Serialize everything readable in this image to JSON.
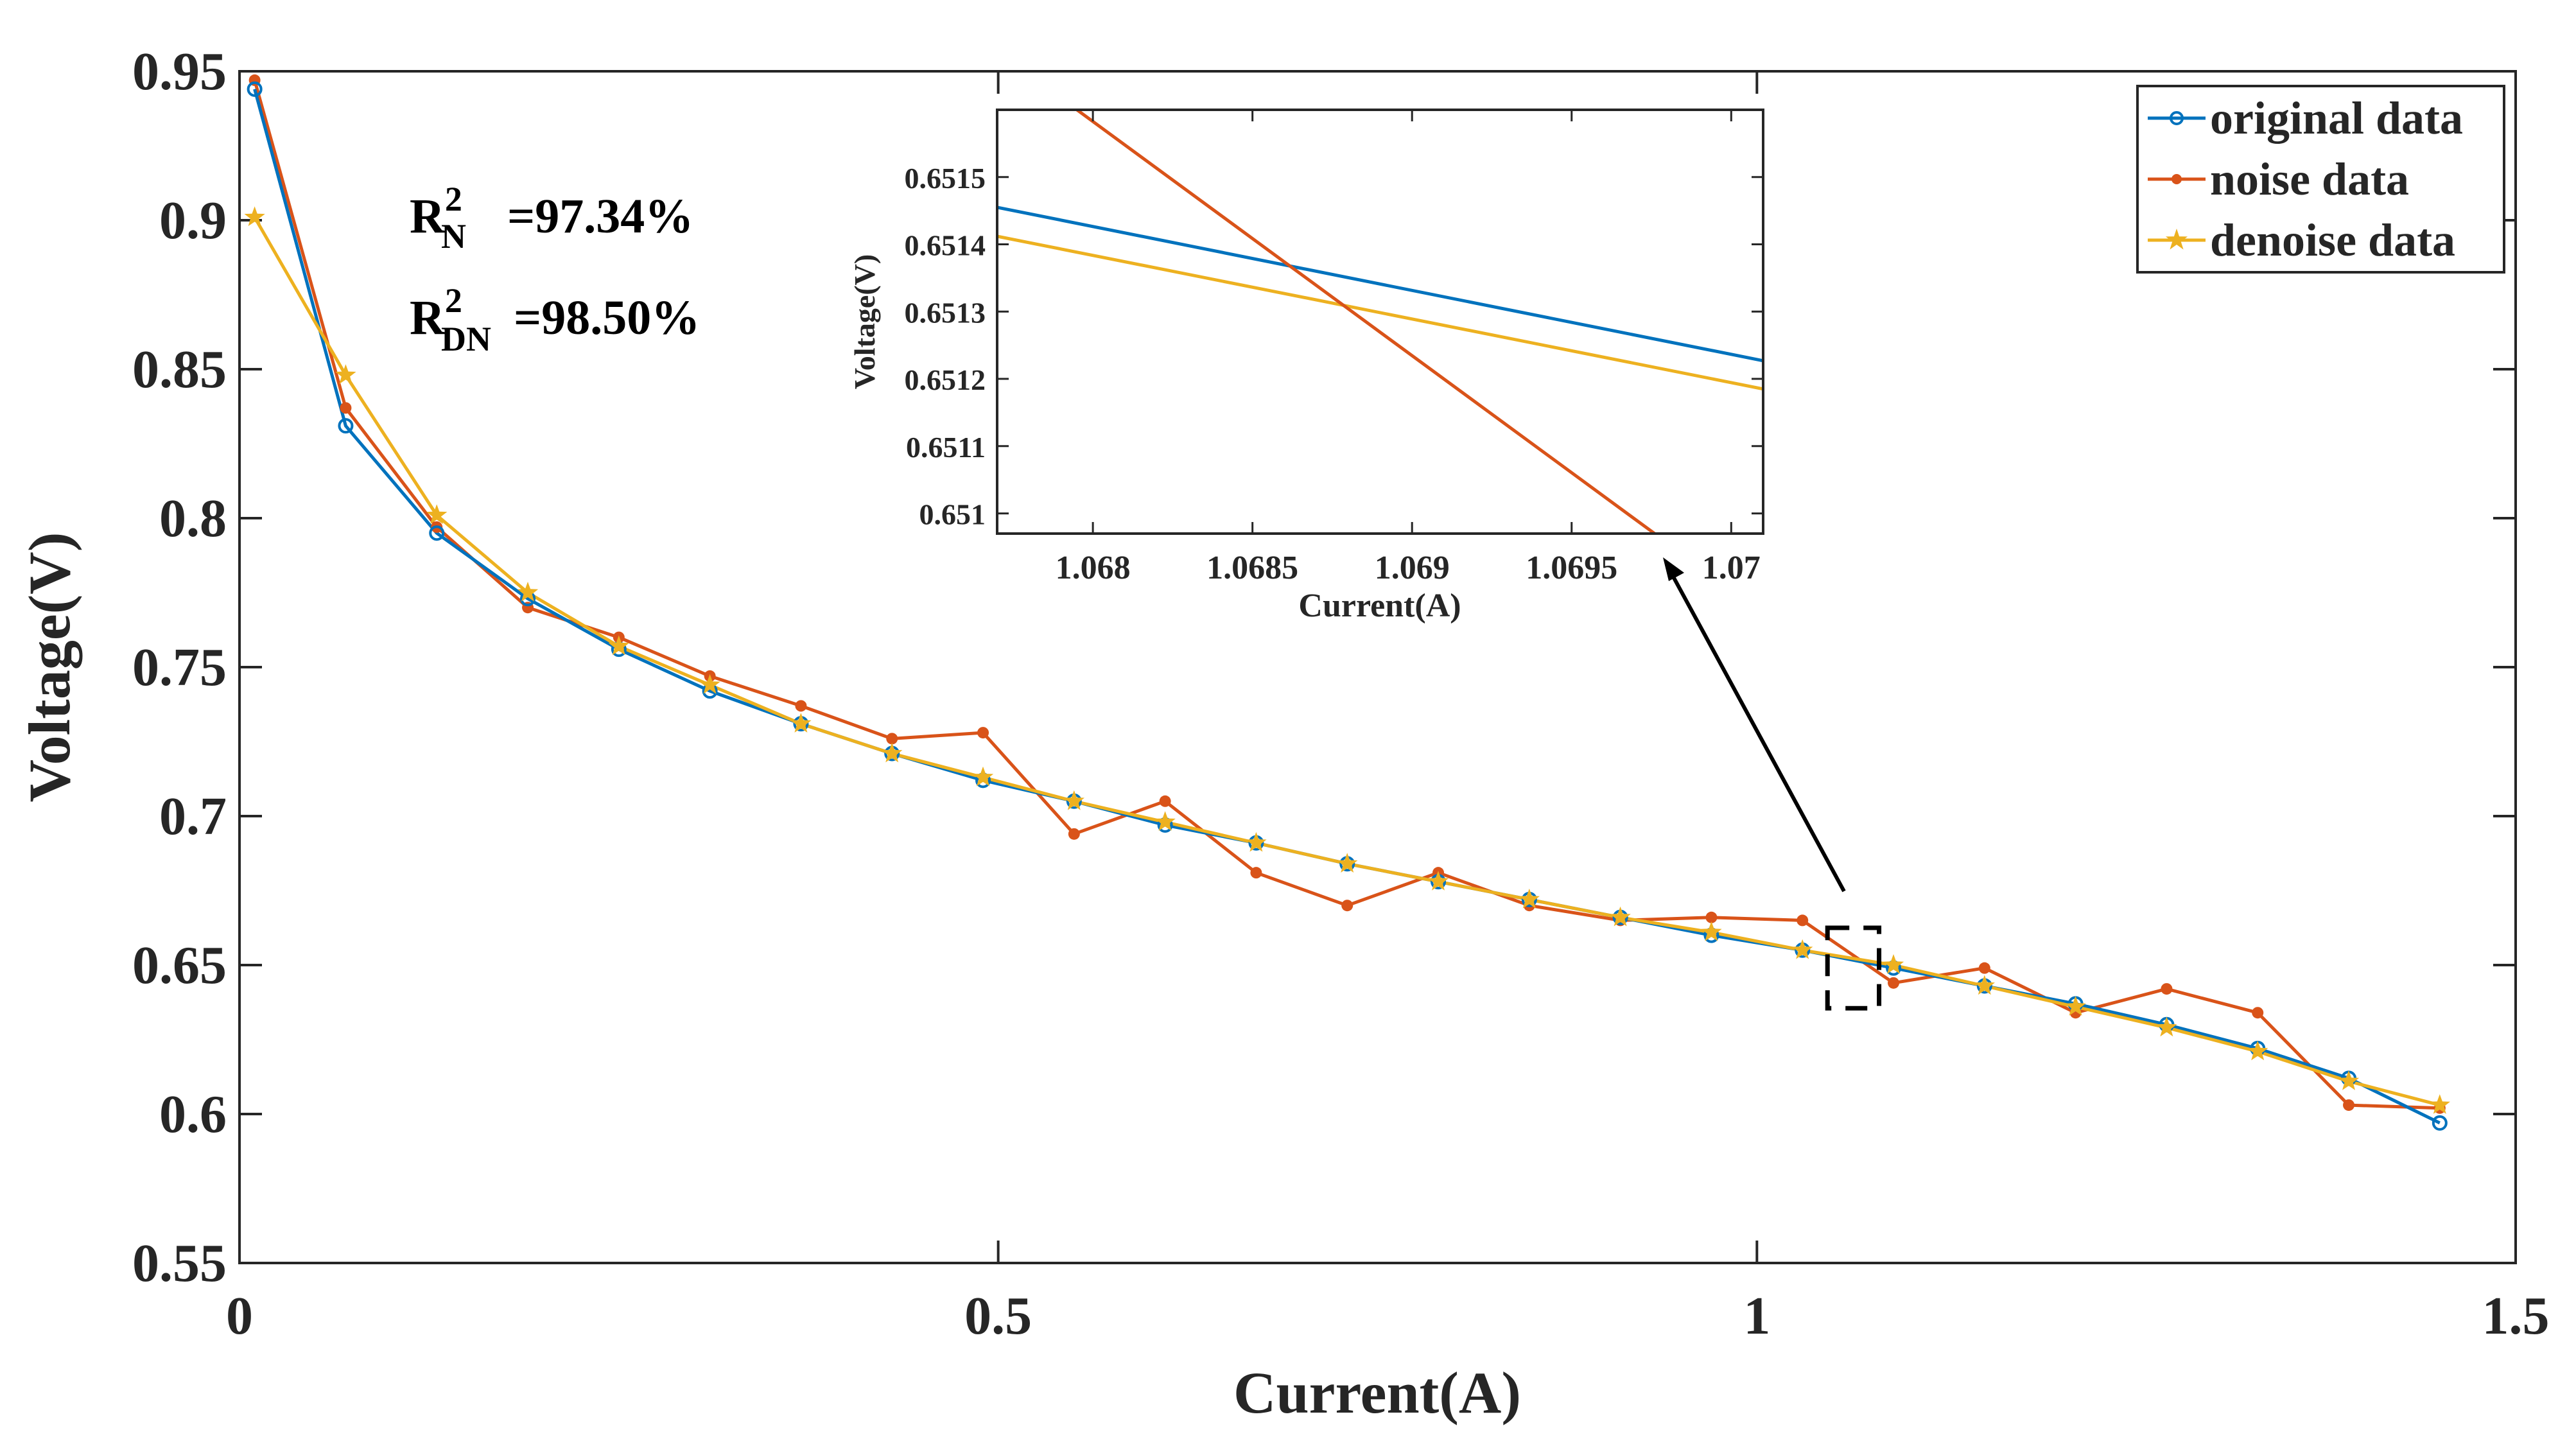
{
  "chart_data": [
    {
      "type": "line",
      "title": "",
      "xlabel": "Current(A)",
      "ylabel": "Voltage(V)",
      "xlim": [
        0,
        1.5
      ],
      "ylim": [
        0.55,
        0.95
      ],
      "xticks": [
        0,
        0.5,
        1,
        1.5
      ],
      "xtick_labels": [
        "0",
        "0.5",
        "1",
        "1.5"
      ],
      "yticks": [
        0.55,
        0.6,
        0.65,
        0.7,
        0.75,
        0.8,
        0.85,
        0.9,
        0.95
      ],
      "ytick_labels": [
        "0.55",
        "0.6",
        "0.65",
        "0.7",
        "0.75",
        "0.8",
        "0.85",
        "0.9",
        "0.95"
      ],
      "legend_position": "top-right",
      "x": [
        0.01,
        0.07,
        0.13,
        0.19,
        0.25,
        0.31,
        0.37,
        0.43,
        0.49,
        0.55,
        0.61,
        0.67,
        0.73,
        0.79,
        0.85,
        0.91,
        0.97,
        1.03,
        1.09,
        1.15,
        1.21,
        1.27,
        1.33,
        1.39,
        1.45
      ],
      "series": [
        {
          "name": "original data",
          "color": "#0072BD",
          "marker": "circle",
          "values": [
            0.944,
            0.831,
            0.795,
            0.773,
            0.756,
            0.742,
            0.731,
            0.721,
            0.712,
            0.705,
            0.697,
            0.691,
            0.684,
            0.678,
            0.672,
            0.666,
            0.66,
            0.655,
            0.649,
            0.643,
            0.637,
            0.63,
            0.622,
            0.612,
            0.597
          ]
        },
        {
          "name": "noise data",
          "color": "#D95319",
          "marker": "dot",
          "values": [
            0.947,
            0.837,
            0.797,
            0.77,
            0.76,
            0.747,
            0.737,
            0.726,
            0.728,
            0.694,
            0.705,
            0.681,
            0.67,
            0.681,
            0.67,
            0.665,
            0.666,
            0.665,
            0.644,
            0.649,
            0.634,
            0.642,
            0.634,
            0.603,
            0.602
          ]
        },
        {
          "name": "denoise data",
          "color": "#EDB120",
          "marker": "star",
          "values": [
            0.901,
            0.848,
            0.801,
            0.775,
            0.757,
            0.744,
            0.731,
            0.721,
            0.713,
            0.705,
            0.698,
            0.691,
            0.684,
            0.678,
            0.672,
            0.666,
            0.661,
            0.655,
            0.65,
            0.643,
            0.636,
            0.629,
            0.621,
            0.611,
            0.603
          ]
        }
      ],
      "annotations": {
        "r2_n": {
          "base": "R",
          "sup": "2",
          "sub": "N",
          "value": "=97.34%"
        },
        "r2_dn": {
          "base": "R",
          "sup": "2",
          "sub": "DN",
          "value": "=98.50%"
        }
      },
      "zoom_box": {
        "x": [
          1.0465,
          1.0805
        ],
        "y": [
          0.6355,
          0.6625
        ]
      }
    },
    {
      "type": "line",
      "title": "",
      "xlabel": "Current(A)",
      "ylabel": "Voltage(V)",
      "xlim": [
        1.0677,
        1.0701
      ],
      "ylim": [
        0.65097,
        0.6516
      ],
      "xticks": [
        1.068,
        1.0685,
        1.069,
        1.0695,
        1.07
      ],
      "xtick_labels": [
        "1.068",
        "1.0685",
        "1.069",
        "1.0695",
        "1.07"
      ],
      "yticks": [
        0.651,
        0.6511,
        0.6512,
        0.6513,
        0.6514,
        0.6515
      ],
      "ytick_labels": [
        "0.651",
        "0.6511",
        "0.6512",
        "0.6513",
        "0.6514",
        "0.6515"
      ],
      "series": [
        {
          "name": "original data",
          "color": "#0072BD",
          "x": [
            1.0677,
            1.0701
          ],
          "values": [
            0.651455,
            0.651227
          ]
        },
        {
          "name": "noise data",
          "color": "#D95319",
          "x": [
            1.06795,
            1.06976
          ],
          "values": [
            0.6516,
            0.65097
          ]
        },
        {
          "name": "denoise data",
          "color": "#EDB120",
          "x": [
            1.0677,
            1.0701
          ],
          "values": [
            0.651412,
            0.651185
          ]
        }
      ]
    }
  ]
}
